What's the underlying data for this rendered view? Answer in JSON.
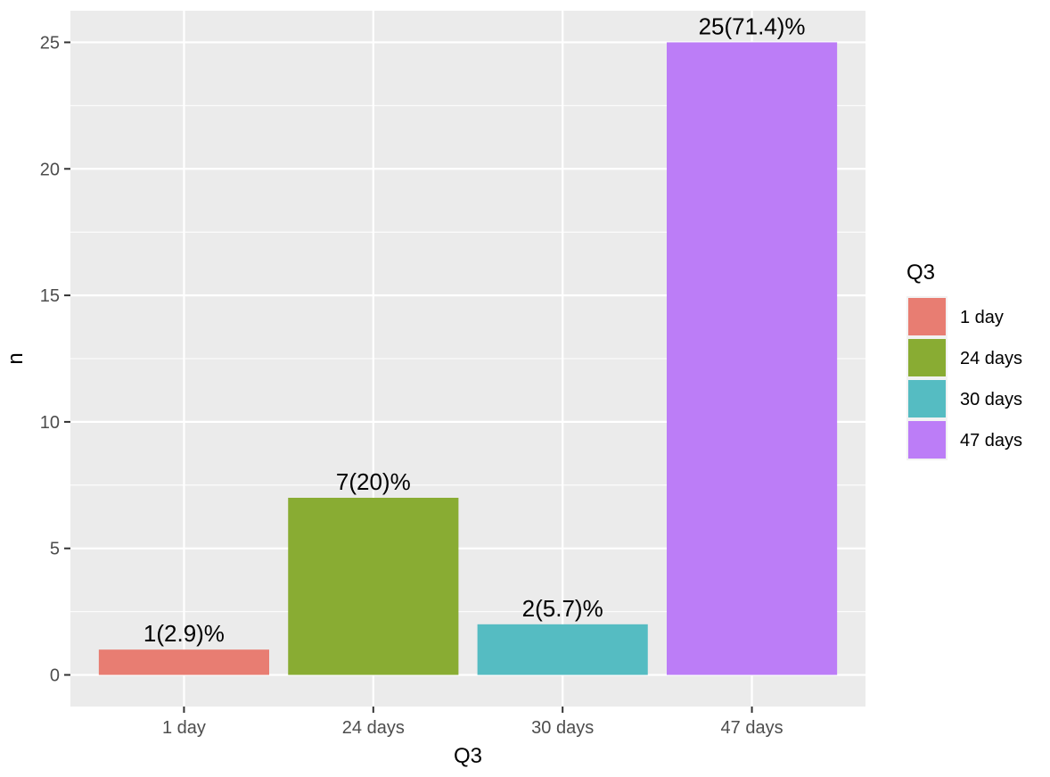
{
  "chart_data": {
    "type": "bar",
    "categories": [
      "1 day",
      "24 days",
      "30 days",
      "47 days"
    ],
    "values": [
      1,
      7,
      2,
      25
    ],
    "data_labels": [
      "1(2.9)%",
      "7(20)%",
      "2(5.7)%",
      "25(71.4)%"
    ],
    "colors": [
      "#E87D72",
      "#89AC33",
      "#55BCC2",
      "#BC7DF7"
    ],
    "xlabel": "Q3",
    "ylabel": "n",
    "ylim": [
      -1.25,
      26.25
    ],
    "yticks": [
      0,
      5,
      10,
      15,
      20,
      25
    ],
    "grid": true,
    "legend": {
      "title": "Q3",
      "placement": "right",
      "entries": [
        "1 day",
        "24 days",
        "30 days",
        "47 days"
      ]
    },
    "panel_background": "#EBEBEB",
    "grid_color": "#FFFFFF"
  }
}
